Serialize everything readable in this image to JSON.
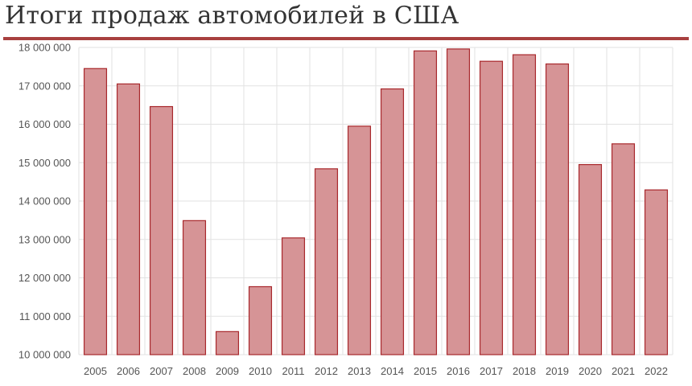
{
  "header": {
    "title": "Итоги продаж автомобилей в США"
  },
  "colors": {
    "bar_fill": "#d69496",
    "bar_stroke": "#a8282c",
    "rule": "#a8403f",
    "grid": "#e2e2e2"
  },
  "chart_data": {
    "type": "bar",
    "title": "Итоги продаж автомобилей в США",
    "xlabel": "",
    "ylabel": "",
    "categories": [
      "2005",
      "2006",
      "2007",
      "2008",
      "2009",
      "2010",
      "2011",
      "2012",
      "2013",
      "2014",
      "2015",
      "2016",
      "2017",
      "2018",
      "2019",
      "2020",
      "2021",
      "2022"
    ],
    "values": [
      17450000,
      17050000,
      16460000,
      13490000,
      10600000,
      11770000,
      13040000,
      14840000,
      15950000,
      16920000,
      17910000,
      17960000,
      17640000,
      17810000,
      17570000,
      14950000,
      15490000,
      14290000
    ],
    "ylim": [
      10000000,
      18000000
    ],
    "yticks": [
      10000000,
      11000000,
      12000000,
      13000000,
      14000000,
      15000000,
      16000000,
      17000000,
      18000000
    ],
    "ytick_labels": [
      "10 000 000",
      "11 000 000",
      "12 000 000",
      "13 000 000",
      "14 000 000",
      "15 000 000",
      "16 000 000",
      "17 000 000",
      "18 000 000"
    ],
    "grid": true,
    "legend": "none"
  }
}
